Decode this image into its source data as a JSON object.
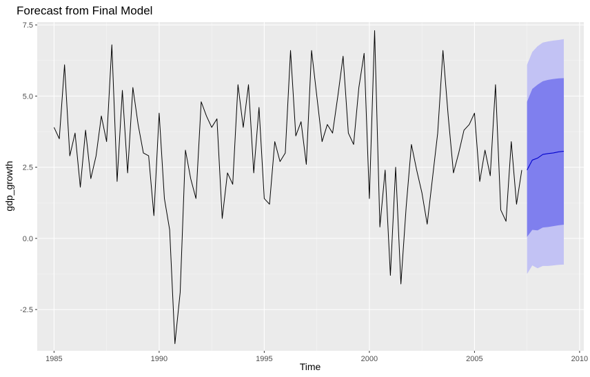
{
  "chart_data": {
    "type": "line",
    "title": "Forecast from Final Model",
    "xlabel": "Time",
    "ylabel": "gdp_growth",
    "xlim": [
      1984.2,
      2010.2
    ],
    "ylim": [
      -3.95,
      7.6
    ],
    "x_ticks": [
      1985,
      1990,
      1995,
      2000,
      2005,
      2010
    ],
    "x_tick_labels": [
      "1985",
      "1990",
      "1995",
      "2000",
      "2005",
      "2010"
    ],
    "y_ticks": [
      -2.5,
      0.0,
      2.5,
      5.0,
      7.5
    ],
    "y_tick_labels": [
      "-2.5",
      "0.0",
      "2.5",
      "5.0",
      "7.5"
    ],
    "grid": true,
    "colors": {
      "panel_bg": "#ebebeb",
      "grid_major": "#ffffff",
      "history_line": "#000000",
      "forecast_line": "#0000cc",
      "band80": "#7f7fee",
      "band95": "#c2c2f4"
    },
    "history": {
      "x_start": 1985.0,
      "step": 0.25,
      "values": [
        3.9,
        3.5,
        6.1,
        2.9,
        3.7,
        1.8,
        3.8,
        2.1,
        2.9,
        4.3,
        3.4,
        6.8,
        2.0,
        5.2,
        2.3,
        5.3,
        4.0,
        3.0,
        2.9,
        0.8,
        4.4,
        1.4,
        0.3,
        -3.7,
        -1.9,
        3.1,
        2.1,
        1.4,
        4.8,
        4.3,
        3.9,
        4.2,
        0.7,
        2.3,
        1.9,
        5.4,
        3.9,
        5.4,
        2.3,
        4.6,
        1.4,
        1.2,
        3.4,
        2.7,
        3.0,
        6.6,
        3.6,
        4.1,
        2.6,
        6.6,
        5.0,
        3.4,
        4.0,
        3.7,
        5.0,
        6.4,
        3.7,
        3.3,
        5.3,
        6.5,
        1.4,
        7.3,
        0.4,
        2.4,
        -1.3,
        2.5,
        -1.6,
        1.1,
        3.3,
        2.4,
        1.6,
        0.5,
        2.1,
        3.7,
        6.6,
        4.3,
        2.3,
        3.0,
        3.8,
        4.0,
        4.4,
        2.0,
        3.1,
        2.2,
        5.4,
        1.0,
        0.6,
        3.4,
        1.2,
        2.4
      ]
    },
    "forecast": {
      "x_start": 2007.5,
      "step": 0.25,
      "mean": [
        2.4,
        2.75,
        2.82,
        2.95,
        2.98,
        3.0,
        3.04,
        3.06
      ],
      "lo80": [
        0.05,
        0.3,
        0.28,
        0.38,
        0.4,
        0.43,
        0.46,
        0.48
      ],
      "hi80": [
        4.8,
        5.25,
        5.4,
        5.52,
        5.57,
        5.6,
        5.62,
        5.63
      ],
      "lo95": [
        -1.25,
        -0.95,
        -1.05,
        -0.97,
        -0.97,
        -0.95,
        -0.93,
        -0.92
      ],
      "hi95": [
        6.1,
        6.55,
        6.75,
        6.88,
        6.92,
        6.95,
        6.97,
        7.0
      ]
    }
  }
}
